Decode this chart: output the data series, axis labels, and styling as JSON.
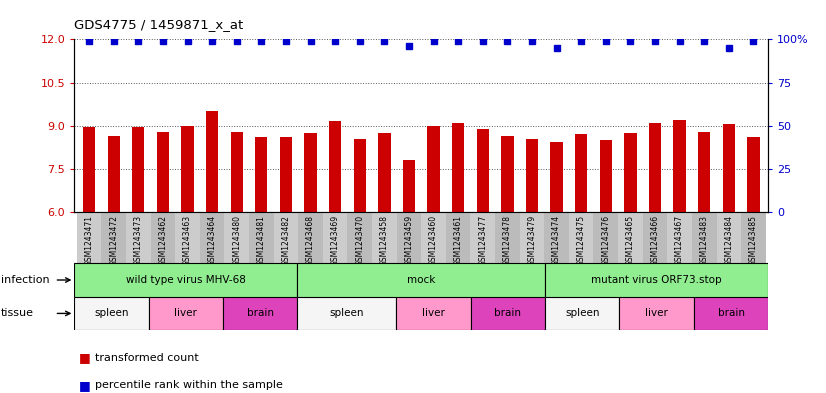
{
  "title": "GDS4775 / 1459871_x_at",
  "samples": [
    "GSM1243471",
    "GSM1243472",
    "GSM1243473",
    "GSM1243462",
    "GSM1243463",
    "GSM1243464",
    "GSM1243480",
    "GSM1243481",
    "GSM1243482",
    "GSM1243468",
    "GSM1243469",
    "GSM1243470",
    "GSM1243458",
    "GSM1243459",
    "GSM1243460",
    "GSM1243461",
    "GSM1243477",
    "GSM1243478",
    "GSM1243479",
    "GSM1243474",
    "GSM1243475",
    "GSM1243476",
    "GSM1243465",
    "GSM1243466",
    "GSM1243467",
    "GSM1243483",
    "GSM1243484",
    "GSM1243485"
  ],
  "bar_values": [
    8.95,
    8.65,
    8.95,
    8.8,
    9.0,
    9.5,
    8.8,
    8.6,
    8.6,
    8.75,
    9.15,
    8.55,
    8.75,
    7.8,
    9.0,
    9.1,
    8.9,
    8.65,
    8.55,
    8.45,
    8.7,
    8.5,
    8.75,
    9.1,
    9.2,
    8.8,
    9.05,
    8.6
  ],
  "percentile_values": [
    99,
    99,
    99,
    99,
    99,
    99,
    99,
    99,
    99,
    99,
    99,
    99,
    99,
    96,
    99,
    99,
    99,
    99,
    99,
    95,
    99,
    99,
    99,
    99,
    99,
    99,
    95,
    99
  ],
  "ymin": 6,
  "ymax": 12,
  "yticks": [
    6,
    7.5,
    9,
    10.5,
    12
  ],
  "y2min": 0,
  "y2max": 100,
  "y2ticks": [
    0,
    25,
    50,
    75,
    100
  ],
  "bar_color": "#cc0000",
  "dot_color": "#0000cc",
  "bar_width": 0.5,
  "infection_groups": [
    {
      "label": "wild type virus MHV-68",
      "start": 0,
      "end": 9
    },
    {
      "label": "mock",
      "start": 9,
      "end": 19
    },
    {
      "label": "mutant virus ORF73.stop",
      "start": 19,
      "end": 28
    }
  ],
  "infection_color": "#90ee90",
  "tissue_groups": [
    {
      "label": "spleen",
      "start": 0,
      "end": 3,
      "color": "#f5f5f5"
    },
    {
      "label": "liver",
      "start": 3,
      "end": 6,
      "color": "#ff99cc"
    },
    {
      "label": "brain",
      "start": 6,
      "end": 9,
      "color": "#dd44bb"
    },
    {
      "label": "spleen",
      "start": 9,
      "end": 13,
      "color": "#f5f5f5"
    },
    {
      "label": "liver",
      "start": 13,
      "end": 16,
      "color": "#ff99cc"
    },
    {
      "label": "brain",
      "start": 16,
      "end": 19,
      "color": "#dd44bb"
    },
    {
      "label": "spleen",
      "start": 19,
      "end": 22,
      "color": "#f5f5f5"
    },
    {
      "label": "liver",
      "start": 22,
      "end": 25,
      "color": "#ff99cc"
    },
    {
      "label": "brain",
      "start": 25,
      "end": 28,
      "color": "#dd44bb"
    }
  ],
  "dotted_line_color": "#555555",
  "tick_label_color_left": "#cc0000",
  "tick_label_color_right": "#0000cc",
  "xticklabel_bg": "#cccccc"
}
